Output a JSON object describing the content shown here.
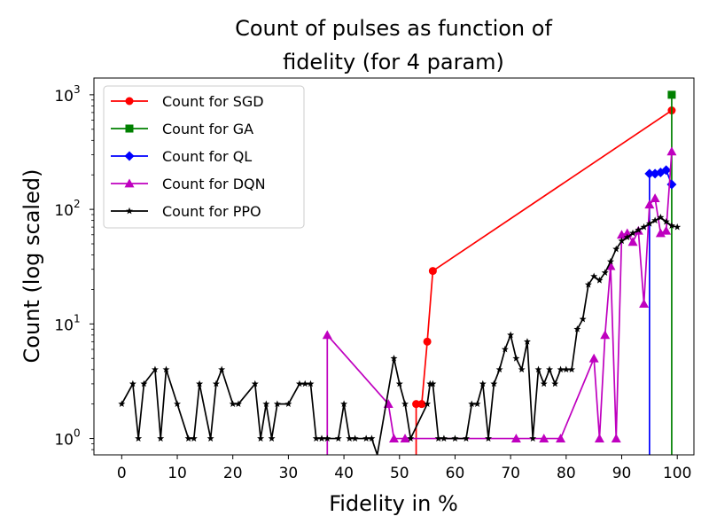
{
  "chart_data": {
    "type": "line",
    "title_lines": [
      "Count of pulses as function of",
      "fidelity (for 4 param)"
    ],
    "xlabel": "Fidelity in %",
    "ylabel": "Count (log scaled)",
    "xlim": [
      -5,
      103
    ],
    "ylim": [
      0.72,
      1400
    ],
    "yscale": "log",
    "xticks": [
      0,
      10,
      20,
      30,
      40,
      50,
      60,
      70,
      80,
      90,
      100
    ],
    "xtick_labels": [
      "0",
      "10",
      "20",
      "30",
      "40",
      "50",
      "60",
      "70",
      "80",
      "90",
      "100"
    ],
    "yticks": [
      1,
      10,
      100,
      1000
    ],
    "ytick_labels": [
      {
        "base": "10",
        "exp": "0"
      },
      {
        "base": "10",
        "exp": "1"
      },
      {
        "base": "10",
        "exp": "2"
      },
      {
        "base": "10",
        "exp": "3"
      }
    ],
    "legend_position": "upper-left",
    "series": [
      {
        "name": "Count for SGD",
        "color": "#ff0000",
        "marker": "circle",
        "stem": true,
        "points": [
          [
            53,
            2
          ],
          [
            54,
            2
          ],
          [
            55,
            7
          ],
          [
            56,
            29
          ],
          [
            99,
            730
          ]
        ]
      },
      {
        "name": "Count for GA",
        "color": "#008000",
        "marker": "square",
        "stem": true,
        "points": [
          [
            99,
            1000
          ]
        ]
      },
      {
        "name": "Count for QL",
        "color": "#0000ff",
        "marker": "diamond",
        "stem": true,
        "points": [
          [
            95,
            205
          ],
          [
            96,
            205
          ],
          [
            97,
            210
          ],
          [
            98,
            220
          ],
          [
            99,
            165
          ]
        ]
      },
      {
        "name": "Count for DQN",
        "color": "#bf00bf",
        "marker": "triangle",
        "stem": true,
        "points": [
          [
            37,
            8
          ],
          [
            48,
            2
          ],
          [
            49,
            1
          ],
          [
            51,
            1
          ],
          [
            71,
            1
          ],
          [
            76,
            1
          ],
          [
            79,
            1
          ],
          [
            85,
            5
          ],
          [
            86,
            1
          ],
          [
            87,
            8
          ],
          [
            88,
            32
          ],
          [
            89,
            1
          ],
          [
            90,
            60
          ],
          [
            91,
            62
          ],
          [
            92,
            52
          ],
          [
            93,
            65
          ],
          [
            94,
            15
          ],
          [
            95,
            110
          ],
          [
            96,
            125
          ],
          [
            97,
            62
          ],
          [
            98,
            65
          ],
          [
            99,
            320
          ]
        ]
      },
      {
        "name": "Count for PPO",
        "color": "#000000",
        "marker": "star",
        "stem": false,
        "points": [
          [
            0,
            2
          ],
          [
            2,
            3
          ],
          [
            3,
            1
          ],
          [
            4,
            3
          ],
          [
            6,
            4
          ],
          [
            7,
            1
          ],
          [
            8,
            4
          ],
          [
            10,
            2
          ],
          [
            12,
            1
          ],
          [
            13,
            1
          ],
          [
            14,
            3
          ],
          [
            16,
            1
          ],
          [
            17,
            3
          ],
          [
            18,
            4
          ],
          [
            20,
            2
          ],
          [
            21,
            2
          ],
          [
            24,
            3
          ],
          [
            25,
            1
          ],
          [
            26,
            2
          ],
          [
            27,
            1
          ],
          [
            28,
            2
          ],
          [
            30,
            2
          ],
          [
            32,
            3
          ],
          [
            33,
            3
          ],
          [
            34,
            3
          ],
          [
            35,
            1
          ],
          [
            36,
            1
          ],
          [
            37,
            1
          ],
          [
            39,
            1
          ],
          [
            40,
            2
          ],
          [
            41,
            1
          ],
          [
            42,
            1
          ],
          [
            44,
            1
          ],
          [
            45,
            1
          ],
          [
            46,
            0.72
          ],
          [
            49,
            5
          ],
          [
            50,
            3
          ],
          [
            51,
            2
          ],
          [
            52,
            1
          ],
          [
            55,
            2
          ],
          [
            55.5,
            3
          ],
          [
            56,
            3
          ],
          [
            57,
            1
          ],
          [
            58,
            1
          ],
          [
            60,
            1
          ],
          [
            62,
            1
          ],
          [
            63,
            2
          ],
          [
            64,
            2
          ],
          [
            65,
            3
          ],
          [
            66,
            1
          ],
          [
            67,
            3
          ],
          [
            68,
            4
          ],
          [
            69,
            6
          ],
          [
            70,
            8
          ],
          [
            71,
            5
          ],
          [
            72,
            4
          ],
          [
            73,
            7
          ],
          [
            74,
            1
          ],
          [
            75,
            4
          ],
          [
            76,
            3
          ],
          [
            77,
            4
          ],
          [
            78,
            3
          ],
          [
            79,
            4
          ],
          [
            80,
            4
          ],
          [
            81,
            4
          ],
          [
            82,
            9
          ],
          [
            83,
            11
          ],
          [
            84,
            22
          ],
          [
            85,
            26
          ],
          [
            86,
            24
          ],
          [
            87,
            28
          ],
          [
            88,
            35
          ],
          [
            89,
            45
          ],
          [
            90,
            53
          ],
          [
            91,
            57
          ],
          [
            92,
            62
          ],
          [
            93,
            66
          ],
          [
            94,
            70
          ],
          [
            95,
            75
          ],
          [
            96,
            80
          ],
          [
            97,
            85
          ],
          [
            98,
            78
          ],
          [
            99,
            72
          ],
          [
            100,
            70
          ]
        ]
      }
    ]
  }
}
